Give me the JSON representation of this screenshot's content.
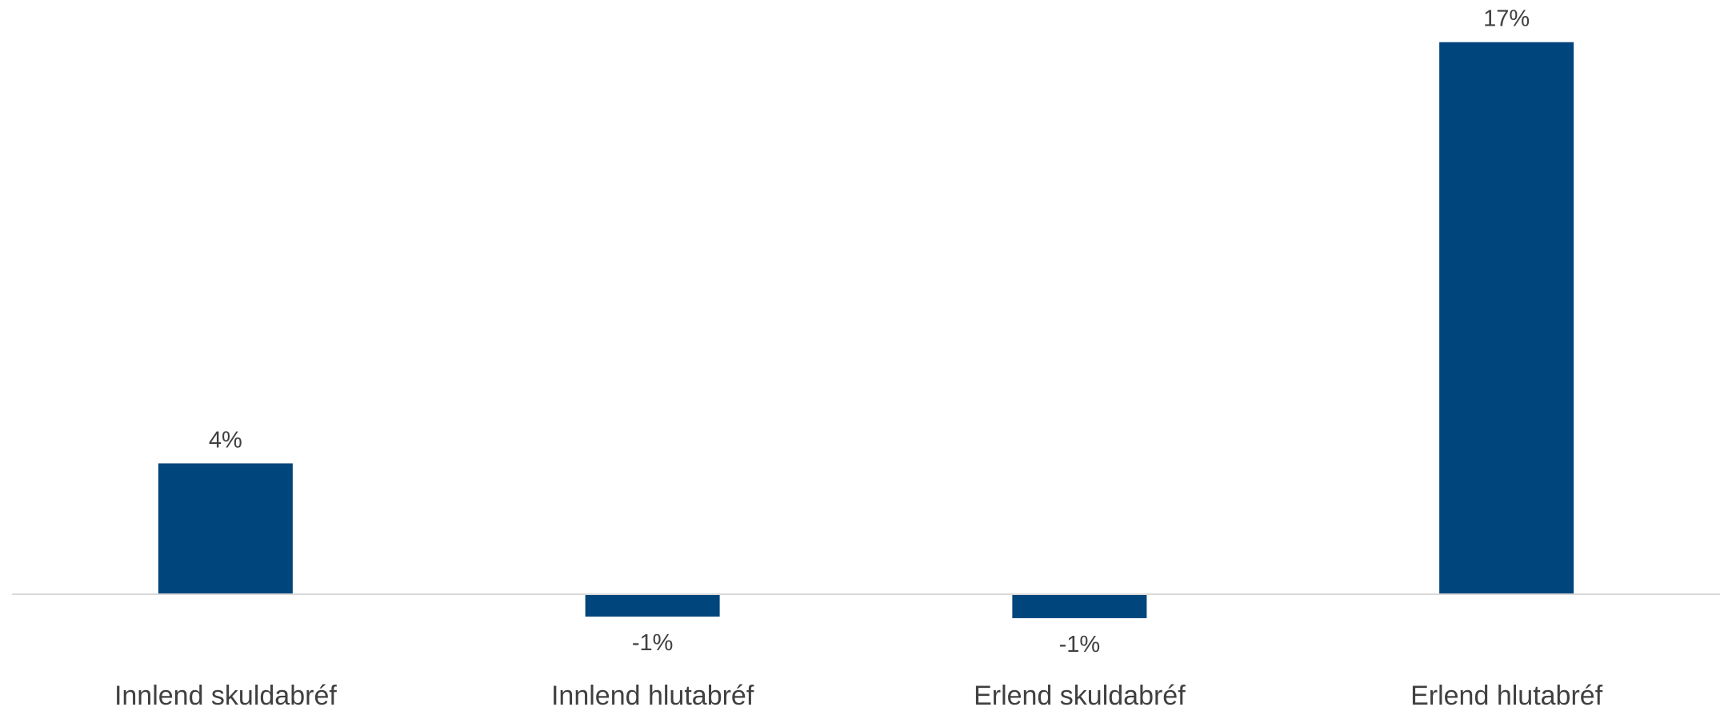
{
  "chart_data": {
    "type": "bar",
    "categories": [
      "Innlend skuldabréf",
      "Innlend hlutabréf",
      "Erlend skuldabréf",
      "Erlend hlutabréf"
    ],
    "values": [
      4.1,
      -0.7,
      -0.75,
      17.3
    ],
    "data_labels": [
      "4%",
      "-1%",
      "-1%",
      "17%"
    ],
    "title": "",
    "xlabel": "",
    "ylabel": "",
    "ylim": [
      -1,
      18
    ],
    "grid": false,
    "legend": "none",
    "colors": {
      "bar": "#00457C",
      "axis": "#D9D9D9",
      "text": "#404040"
    }
  }
}
